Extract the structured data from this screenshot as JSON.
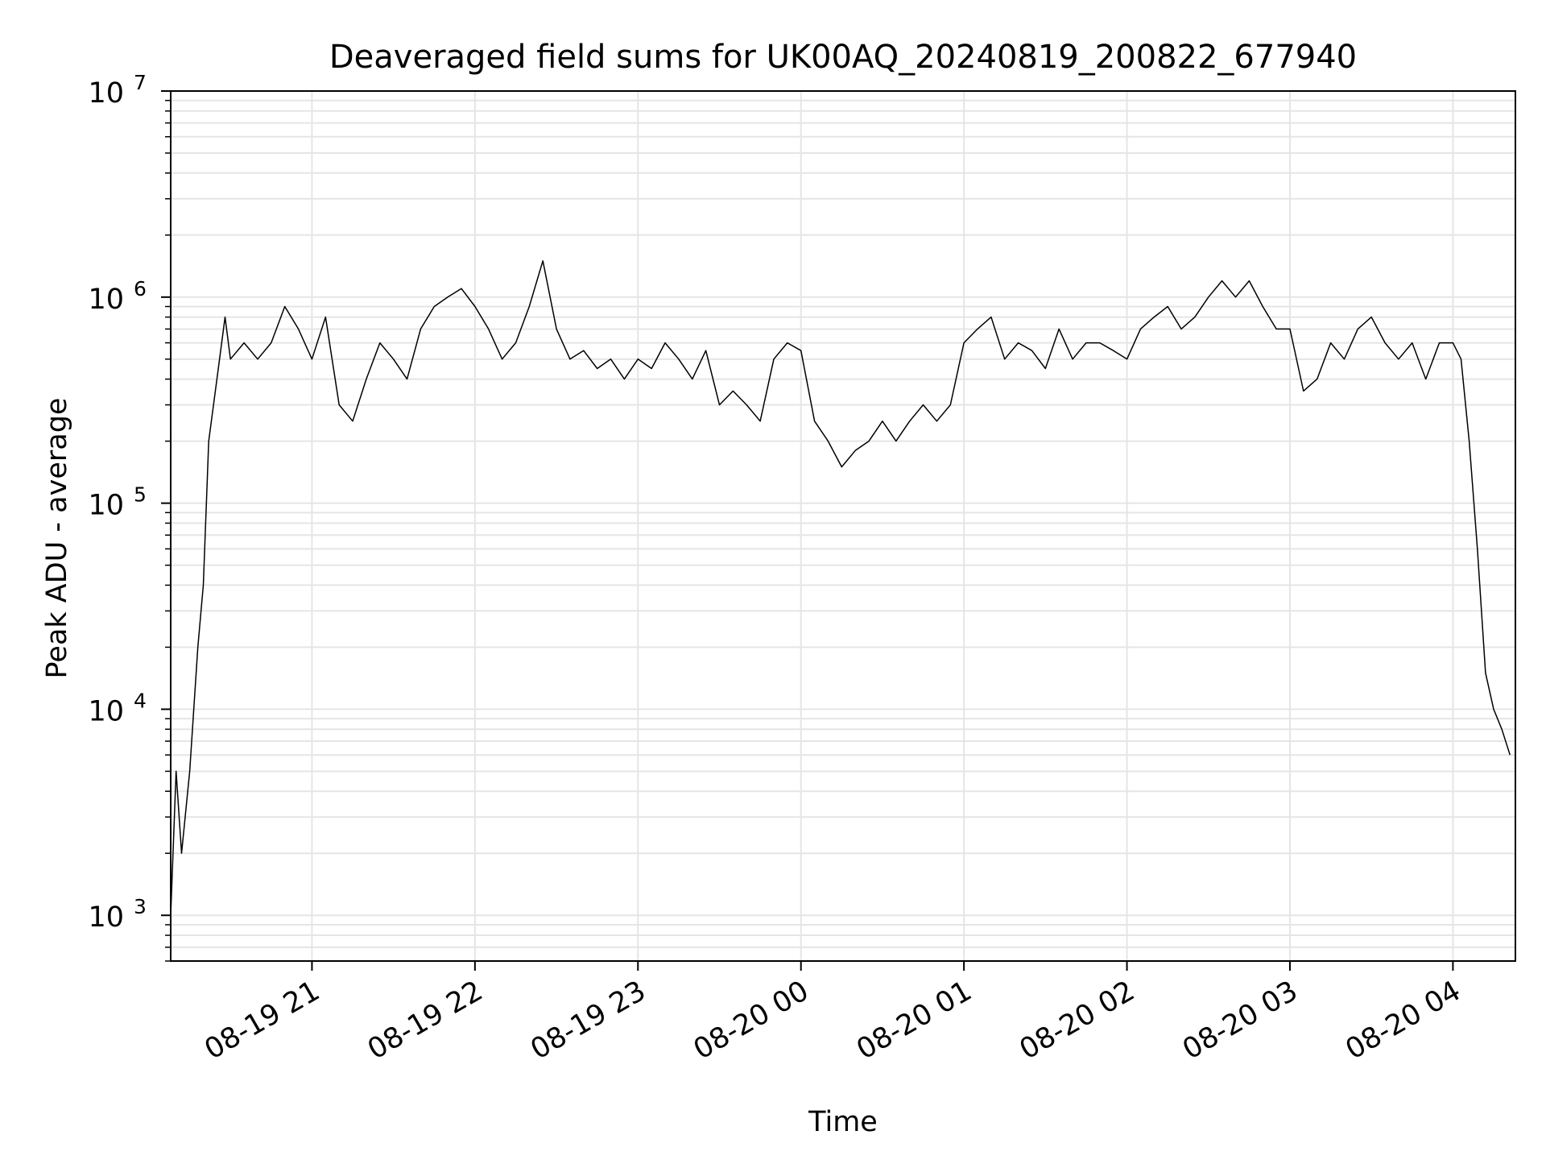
{
  "chart_data": {
    "type": "line",
    "title": "Deaveraged field sums for UK00AQ_20240819_200822_677940",
    "xlabel": "Time",
    "ylabel": "Peak ADU - average",
    "yscale": "log",
    "ylim": [
      600,
      10000000
    ],
    "xlim": [
      "2024-08-19 20:08",
      "2024-08-20 04:23"
    ],
    "grid": true,
    "x_ticks": [
      {
        "value": "2024-08-19 21:00",
        "label": "08-19 21"
      },
      {
        "value": "2024-08-19 22:00",
        "label": "08-19 22"
      },
      {
        "value": "2024-08-19 23:00",
        "label": "08-19 23"
      },
      {
        "value": "2024-08-20 00:00",
        "label": "08-20 00"
      },
      {
        "value": "2024-08-20 01:00",
        "label": "08-20 01"
      },
      {
        "value": "2024-08-20 02:00",
        "label": "08-20 02"
      },
      {
        "value": "2024-08-20 03:00",
        "label": "08-20 03"
      },
      {
        "value": "2024-08-20 04:00",
        "label": "08-20 04"
      }
    ],
    "y_ticks": [
      {
        "value": 1000,
        "base": "10",
        "exp": "3"
      },
      {
        "value": 10000,
        "base": "10",
        "exp": "4"
      },
      {
        "value": 100000,
        "base": "10",
        "exp": "5"
      },
      {
        "value": 1000000,
        "base": "10",
        "exp": "6"
      },
      {
        "value": 10000000,
        "base": "10",
        "exp": "7"
      }
    ],
    "series": [
      {
        "color": "#000000",
        "x": [
          "2024-08-19 20:08",
          "2024-08-19 20:10",
          "2024-08-19 20:12",
          "2024-08-19 20:15",
          "2024-08-19 20:18",
          "2024-08-19 20:20",
          "2024-08-19 20:22",
          "2024-08-19 20:25",
          "2024-08-19 20:28",
          "2024-08-19 20:30",
          "2024-08-19 20:35",
          "2024-08-19 20:40",
          "2024-08-19 20:45",
          "2024-08-19 20:50",
          "2024-08-19 20:55",
          "2024-08-19 21:00",
          "2024-08-19 21:05",
          "2024-08-19 21:10",
          "2024-08-19 21:15",
          "2024-08-19 21:20",
          "2024-08-19 21:25",
          "2024-08-19 21:30",
          "2024-08-19 21:35",
          "2024-08-19 21:40",
          "2024-08-19 21:45",
          "2024-08-19 21:50",
          "2024-08-19 21:55",
          "2024-08-19 22:00",
          "2024-08-19 22:05",
          "2024-08-19 22:10",
          "2024-08-19 22:15",
          "2024-08-19 22:20",
          "2024-08-19 22:25",
          "2024-08-19 22:30",
          "2024-08-19 22:35",
          "2024-08-19 22:40",
          "2024-08-19 22:45",
          "2024-08-19 22:50",
          "2024-08-19 22:55",
          "2024-08-19 23:00",
          "2024-08-19 23:05",
          "2024-08-19 23:10",
          "2024-08-19 23:15",
          "2024-08-19 23:20",
          "2024-08-19 23:25",
          "2024-08-19 23:30",
          "2024-08-19 23:35",
          "2024-08-19 23:40",
          "2024-08-19 23:45",
          "2024-08-19 23:50",
          "2024-08-19 23:55",
          "2024-08-20 00:00",
          "2024-08-20 00:05",
          "2024-08-20 00:10",
          "2024-08-20 00:15",
          "2024-08-20 00:20",
          "2024-08-20 00:25",
          "2024-08-20 00:30",
          "2024-08-20 00:35",
          "2024-08-20 00:40",
          "2024-08-20 00:45",
          "2024-08-20 00:50",
          "2024-08-20 00:55",
          "2024-08-20 01:00",
          "2024-08-20 01:05",
          "2024-08-20 01:10",
          "2024-08-20 01:15",
          "2024-08-20 01:20",
          "2024-08-20 01:25",
          "2024-08-20 01:30",
          "2024-08-20 01:35",
          "2024-08-20 01:40",
          "2024-08-20 01:45",
          "2024-08-20 01:50",
          "2024-08-20 01:55",
          "2024-08-20 02:00",
          "2024-08-20 02:05",
          "2024-08-20 02:10",
          "2024-08-20 02:15",
          "2024-08-20 02:20",
          "2024-08-20 02:25",
          "2024-08-20 02:30",
          "2024-08-20 02:35",
          "2024-08-20 02:40",
          "2024-08-20 02:45",
          "2024-08-20 02:50",
          "2024-08-20 02:55",
          "2024-08-20 03:00",
          "2024-08-20 03:05",
          "2024-08-20 03:10",
          "2024-08-20 03:15",
          "2024-08-20 03:20",
          "2024-08-20 03:25",
          "2024-08-20 03:30",
          "2024-08-20 03:35",
          "2024-08-20 03:40",
          "2024-08-20 03:45",
          "2024-08-20 03:50",
          "2024-08-20 03:55",
          "2024-08-20 04:00",
          "2024-08-20 04:03",
          "2024-08-20 04:06",
          "2024-08-20 04:09",
          "2024-08-20 04:12",
          "2024-08-20 04:15",
          "2024-08-20 04:18",
          "2024-08-20 04:21"
        ],
        "y": [
          1000,
          5000,
          2000,
          5000,
          20000,
          40000,
          200000,
          400000,
          800000,
          500000,
          600000,
          500000,
          600000,
          900000,
          700000,
          500000,
          800000,
          300000,
          250000,
          400000,
          600000,
          500000,
          400000,
          700000,
          900000,
          1000000,
          1100000,
          900000,
          700000,
          500000,
          600000,
          900000,
          1500000,
          700000,
          500000,
          550000,
          450000,
          500000,
          400000,
          500000,
          450000,
          600000,
          500000,
          400000,
          550000,
          300000,
          350000,
          300000,
          250000,
          500000,
          600000,
          550000,
          250000,
          200000,
          150000,
          180000,
          200000,
          250000,
          200000,
          250000,
          300000,
          250000,
          300000,
          600000,
          700000,
          800000,
          500000,
          600000,
          550000,
          450000,
          700000,
          500000,
          600000,
          600000,
          550000,
          500000,
          700000,
          800000,
          900000,
          700000,
          800000,
          1000000,
          1200000,
          1000000,
          1200000,
          900000,
          700000,
          700000,
          350000,
          400000,
          600000,
          500000,
          700000,
          800000,
          600000,
          500000,
          600000,
          400000,
          600000,
          600000,
          500000,
          200000,
          60000,
          15000,
          10000,
          8000,
          6000
        ]
      }
    ]
  }
}
